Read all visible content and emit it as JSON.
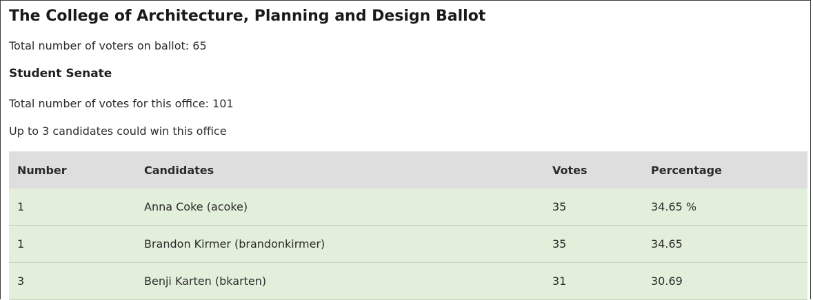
{
  "ballot": {
    "title": "The College of Architecture, Planning and Design Ballot",
    "voters_label": "Total number of voters on ballot: 65"
  },
  "office": {
    "title": "Student Senate",
    "votes_label": "Total number of votes for this office: 101",
    "winners_label": "Up to 3 candidates could win this office"
  },
  "table": {
    "headers": {
      "number": "Number",
      "candidates": "Candidates",
      "votes": "Votes",
      "percentage": "Percentage"
    },
    "rows": [
      {
        "number": "1",
        "candidate": "Anna Coke (acoke)",
        "votes": "35",
        "percentage": "34.65 %"
      },
      {
        "number": "1",
        "candidate": "Brandon Kirmer (brandonkirmer)",
        "votes": "35",
        "percentage": "34.65"
      },
      {
        "number": "3",
        "candidate": "Benji Karten (bkarten)",
        "votes": "31",
        "percentage": "30.69"
      }
    ]
  }
}
